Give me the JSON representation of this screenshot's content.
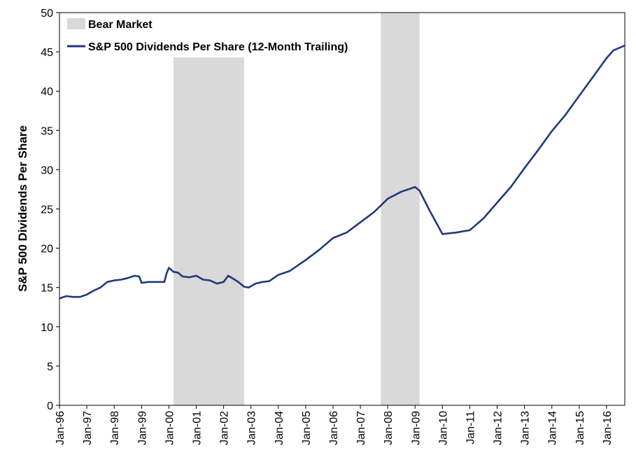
{
  "chart_data": {
    "type": "line",
    "title": "",
    "xlabel": "",
    "ylabel": "S&P 500 Dividends Per Share",
    "ylim": [
      0,
      50
    ],
    "yticks": [
      "0",
      "5",
      "10",
      "15",
      "20",
      "25",
      "30",
      "35",
      "40",
      "45",
      "50"
    ],
    "xlim": [
      "1996-01",
      "2016-09"
    ],
    "xticks": [
      {
        "date": "1996-01",
        "label": "Jan-96"
      },
      {
        "date": "1997-01",
        "label": "Jan-97"
      },
      {
        "date": "1998-01",
        "label": "Jan-98"
      },
      {
        "date": "1999-01",
        "label": "Jan-99"
      },
      {
        "date": "2000-01",
        "label": "Jan-00"
      },
      {
        "date": "2001-01",
        "label": "Jan-01"
      },
      {
        "date": "2002-01",
        "label": "Jan-02"
      },
      {
        "date": "2003-01",
        "label": "Jan-03"
      },
      {
        "date": "2004-01",
        "label": "Jan-04"
      },
      {
        "date": "2005-01",
        "label": "Jan-05"
      },
      {
        "date": "2006-01",
        "label": "Jan-06"
      },
      {
        "date": "2007-01",
        "label": "Jan-07"
      },
      {
        "date": "2008-01",
        "label": "Jan-08"
      },
      {
        "date": "2009-01",
        "label": "Jan-09"
      },
      {
        "date": "2010-01",
        "label": "Jan-10"
      },
      {
        "date": "2011-01",
        "label": "Jan-11"
      },
      {
        "date": "2012-01",
        "label": "Jan-12"
      },
      {
        "date": "2013-01",
        "label": "Jan-13"
      },
      {
        "date": "2014-01",
        "label": "Jan-14"
      },
      {
        "date": "2015-01",
        "label": "Jan-15"
      },
      {
        "date": "2016-01",
        "label": "Jan-16"
      }
    ],
    "grid": false,
    "legend_position": "top-left",
    "shaded_regions": [
      {
        "name": "Bear Market",
        "start": "2000-03",
        "end": "2002-10",
        "color": "#d9d9d9"
      },
      {
        "name": "Bear Market",
        "start": "2007-10",
        "end": "2009-03",
        "color": "#d9d9d9"
      }
    ],
    "series": [
      {
        "name": "S&P 500 Dividends Per Share (12-Month Trailing)",
        "color": "#1f3a7a",
        "points": [
          [
            "1996-01",
            13.6
          ],
          [
            "1996-04",
            13.9
          ],
          [
            "1996-07",
            13.8
          ],
          [
            "1996-10",
            13.8
          ],
          [
            "1997-01",
            14.1
          ],
          [
            "1997-04",
            14.6
          ],
          [
            "1997-07",
            15.0
          ],
          [
            "1997-10",
            15.7
          ],
          [
            "1998-01",
            15.9
          ],
          [
            "1998-04",
            16.0
          ],
          [
            "1998-07",
            16.2
          ],
          [
            "1998-10",
            16.5
          ],
          [
            "1998-12",
            16.4
          ],
          [
            "1999-01",
            15.6
          ],
          [
            "1999-04",
            15.7
          ],
          [
            "1999-07",
            15.7
          ],
          [
            "1999-11",
            15.7
          ],
          [
            "1999-12",
            16.8
          ],
          [
            "2000-01",
            17.5
          ],
          [
            "2000-03",
            17.0
          ],
          [
            "2000-05",
            16.9
          ],
          [
            "2000-07",
            16.4
          ],
          [
            "2000-10",
            16.3
          ],
          [
            "2001-01",
            16.5
          ],
          [
            "2001-04",
            16.0
          ],
          [
            "2001-07",
            15.9
          ],
          [
            "2001-10",
            15.5
          ],
          [
            "2002-01",
            15.7
          ],
          [
            "2002-03",
            16.5
          ],
          [
            "2002-07",
            15.8
          ],
          [
            "2002-10",
            15.1
          ],
          [
            "2002-12",
            15.0
          ],
          [
            "2003-03",
            15.5
          ],
          [
            "2003-06",
            15.7
          ],
          [
            "2003-09",
            15.8
          ],
          [
            "2004-01",
            16.6
          ],
          [
            "2004-06",
            17.1
          ],
          [
            "2004-10",
            17.9
          ],
          [
            "2005-01",
            18.5
          ],
          [
            "2005-07",
            19.8
          ],
          [
            "2006-01",
            21.3
          ],
          [
            "2006-07",
            22.0
          ],
          [
            "2007-01",
            23.3
          ],
          [
            "2007-07",
            24.6
          ],
          [
            "2008-01",
            26.3
          ],
          [
            "2008-07",
            27.2
          ],
          [
            "2009-01",
            27.8
          ],
          [
            "2009-03",
            27.3
          ],
          [
            "2009-07",
            25.0
          ],
          [
            "2010-01",
            21.8
          ],
          [
            "2010-07",
            22.0
          ],
          [
            "2011-01",
            22.3
          ],
          [
            "2011-07",
            23.8
          ],
          [
            "2012-01",
            25.8
          ],
          [
            "2012-07",
            27.8
          ],
          [
            "2013-01",
            30.2
          ],
          [
            "2013-07",
            32.5
          ],
          [
            "2014-01",
            34.9
          ],
          [
            "2014-07",
            37.0
          ],
          [
            "2015-01",
            39.4
          ],
          [
            "2015-07",
            41.8
          ],
          [
            "2016-01",
            44.2
          ],
          [
            "2016-04",
            45.2
          ],
          [
            "2016-09",
            45.8
          ]
        ]
      }
    ]
  }
}
